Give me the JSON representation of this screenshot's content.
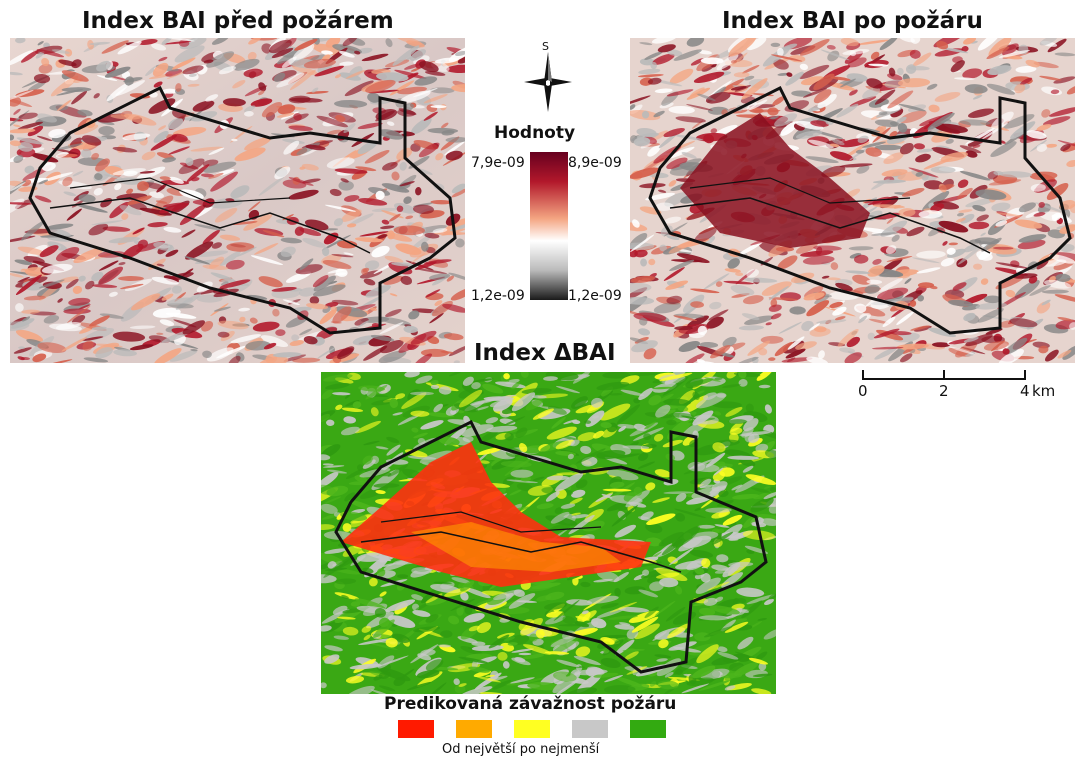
{
  "titles": {
    "before": "Index BAI před požárem",
    "after": "Index BAI po požáru",
    "delta": "Index ΔBAI"
  },
  "compass": {
    "label": "S",
    "icon": "north-arrow-icon"
  },
  "legend_bai": {
    "title": "Hodnoty",
    "max_left": "7,9e-09",
    "max_right": "8,9e-09",
    "min_left": "1,2e-09",
    "min_right": "1,2e-09",
    "colors": [
      "#67001f",
      "#b2182b",
      "#f4a582",
      "#ffffff",
      "#bababa",
      "#1a1a1a"
    ]
  },
  "scalebar": {
    "ticks": [
      "0",
      "2",
      "4"
    ],
    "unit": "km"
  },
  "legend_severity": {
    "title": "Predikovaná závažnost požáru",
    "subtitle": "Od největší po nejmenší",
    "classes": [
      {
        "color": "#ff1a00"
      },
      {
        "color": "#ffaa00"
      },
      {
        "color": "#ffff22"
      },
      {
        "color": "#c8c8c8"
      },
      {
        "color": "#33aa11"
      }
    ]
  }
}
